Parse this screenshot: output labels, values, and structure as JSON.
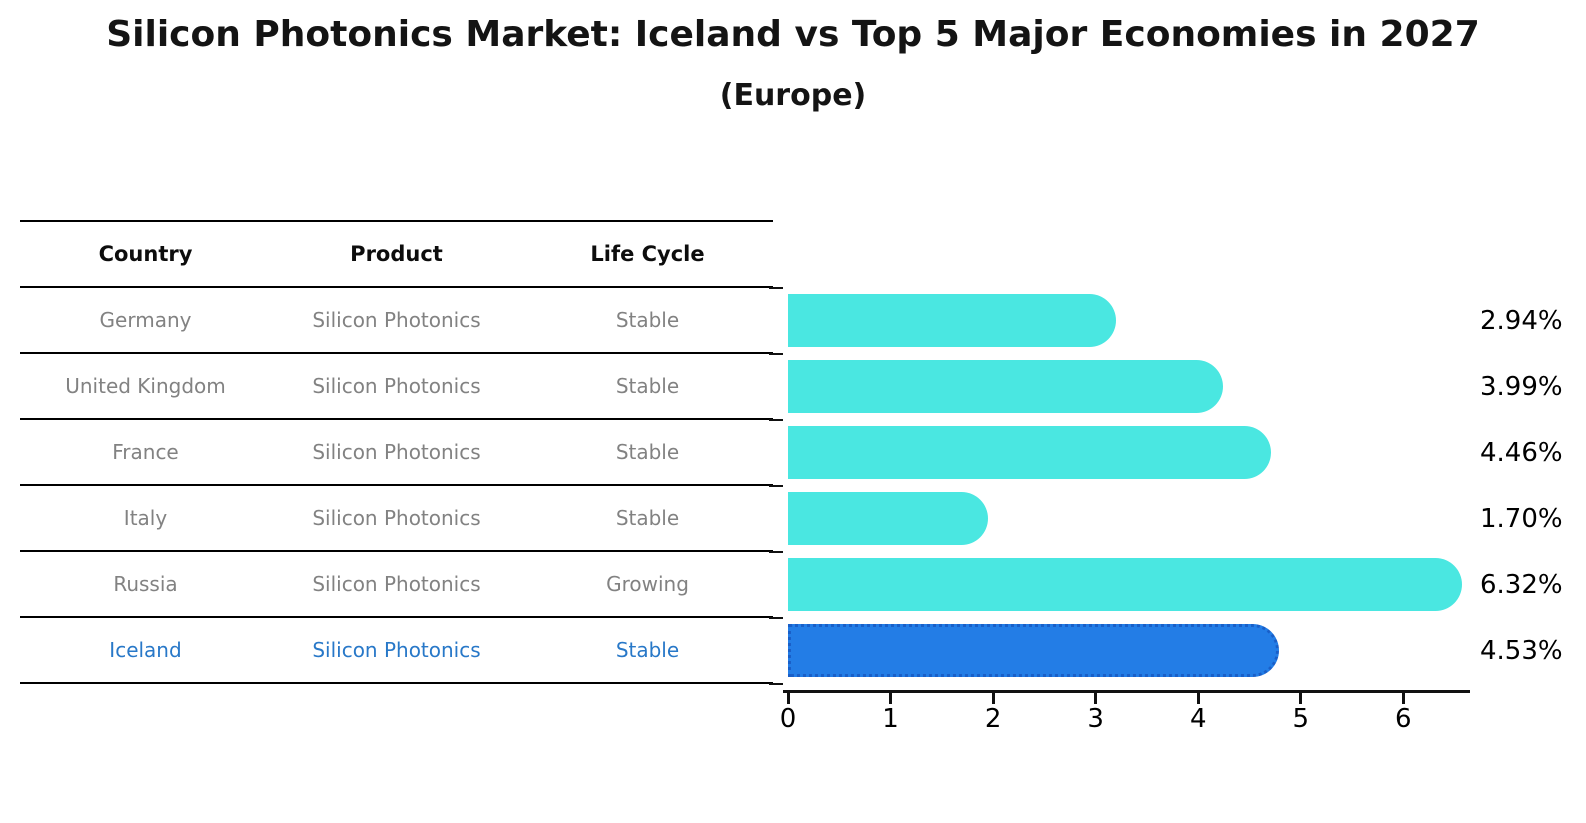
{
  "title": "Silicon Photonics Market: Iceland vs Top 5 Major Economies in 2027",
  "subtitle": "(Europe)",
  "table": {
    "headers": [
      "Country",
      "Product",
      "Life Cycle"
    ],
    "rows": [
      {
        "country": "Germany",
        "product": "Silicon Photonics",
        "life_cycle": "Stable",
        "highlight": false
      },
      {
        "country": "United Kingdom",
        "product": "Silicon Photonics",
        "life_cycle": "Stable",
        "highlight": false
      },
      {
        "country": "France",
        "product": "Silicon Photonics",
        "life_cycle": "Stable",
        "highlight": false
      },
      {
        "country": "Italy",
        "product": "Silicon Photonics",
        "life_cycle": "Stable",
        "highlight": false
      },
      {
        "country": "Russia",
        "product": "Silicon Photonics",
        "life_cycle": "Growing",
        "highlight": false
      },
      {
        "country": "Iceland",
        "product": "Silicon Photonics",
        "life_cycle": "Stable",
        "highlight": true
      }
    ]
  },
  "chart_data": {
    "type": "bar",
    "orientation": "horizontal",
    "title": "Silicon Photonics Market: Iceland vs Top 5 Major Economies in 2027",
    "subtitle": "(Europe)",
    "categories": [
      "Germany",
      "United Kingdom",
      "France",
      "Italy",
      "Russia",
      "Iceland"
    ],
    "values": [
      2.94,
      3.99,
      4.46,
      1.7,
      6.32,
      4.53
    ],
    "value_labels": [
      "2.94%",
      "3.99%",
      "4.46%",
      "1.70%",
      "6.32%",
      "4.53%"
    ],
    "x_ticks": [
      0,
      1,
      2,
      3,
      4,
      5,
      6
    ],
    "xlim": [
      0,
      6.65
    ],
    "grid": false,
    "legend": false,
    "highlight_category": "Iceland",
    "bar_color": "#4AE7E1",
    "highlight_bar_color": "#237DE6",
    "highlight_border_color": "#195FC8"
  },
  "colors": {
    "heading_text": "#141414",
    "table_text": "#828282",
    "highlight_text": "#2878c8",
    "axis": "#111111"
  }
}
